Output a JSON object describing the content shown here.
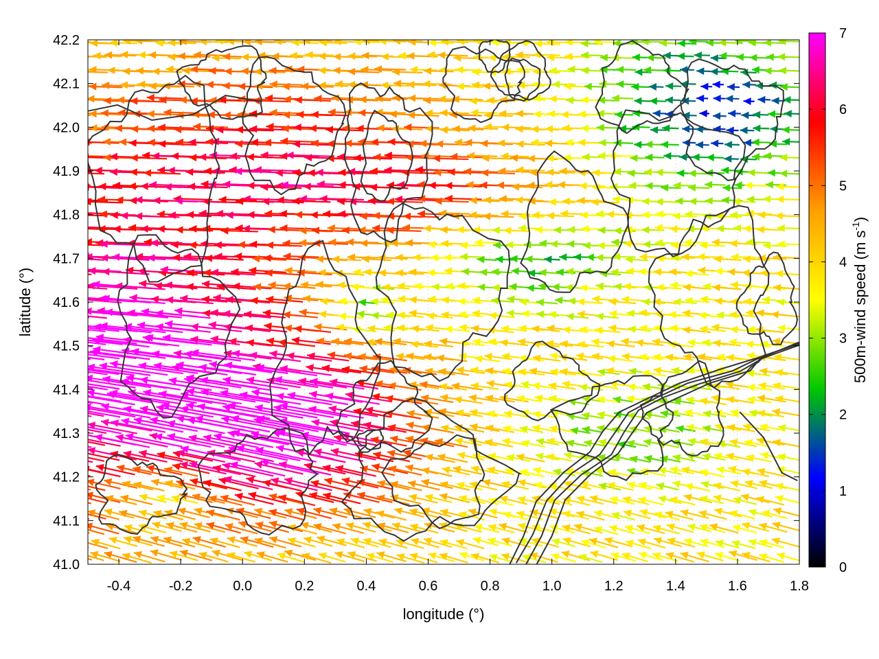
{
  "chart_data": {
    "type": "quiver",
    "xlabel": "longitude (°)",
    "ylabel": "latitude (°)",
    "xlim": [
      -0.5,
      1.8
    ],
    "ylim": [
      41.0,
      42.2
    ],
    "x_ticks": [
      -0.4,
      -0.2,
      0.0,
      0.2,
      0.4,
      0.6,
      0.8,
      1.0,
      1.2,
      1.4,
      1.6,
      1.8
    ],
    "x_tick_labels": [
      "-0.4",
      "-0.2",
      "0.0",
      "0.2",
      "0.4",
      "0.6",
      "0.8",
      "1.0",
      "1.2",
      "1.4",
      "1.6",
      "1.8"
    ],
    "y_ticks": [
      41.0,
      41.1,
      41.2,
      41.3,
      41.4,
      41.5,
      41.6,
      41.7,
      41.8,
      41.9,
      42.0,
      42.1,
      42.2
    ],
    "y_tick_labels": [
      "41.0",
      "41.1",
      "41.2",
      "41.3",
      "41.4",
      "41.5",
      "41.6",
      "41.7",
      "41.8",
      "41.9",
      "42.0",
      "42.1",
      "42.2"
    ],
    "grid": "dotted",
    "colorbar": {
      "label": "500m-wind speed (m s",
      "label_superscript": "-1",
      "label_suffix": ")",
      "range": [
        0,
        7
      ],
      "ticks": [
        0,
        1,
        2,
        3,
        4,
        5,
        6,
        7
      ],
      "tick_labels": [
        "0",
        "1",
        "2",
        "3",
        "4",
        "5",
        "6",
        "7"
      ],
      "colors": [
        "#000000",
        "#0000ff",
        "#00c800",
        "#ffff00",
        "#ffa000",
        "#ff0000",
        "#ff00ff"
      ]
    },
    "contour_color": "#333333",
    "arrow_direction": "westward",
    "wind_regions": [
      {
        "region": "west and southwest",
        "speed_ms": 7
      },
      {
        "region": "north band",
        "speed_ms": 6
      },
      {
        "region": "central",
        "speed_ms": 4.5
      },
      {
        "region": "southeast",
        "speed_ms": 4
      },
      {
        "region": "northeast",
        "speed_ms": 2
      },
      {
        "region": "far northeast",
        "speed_ms": 1
      }
    ]
  }
}
